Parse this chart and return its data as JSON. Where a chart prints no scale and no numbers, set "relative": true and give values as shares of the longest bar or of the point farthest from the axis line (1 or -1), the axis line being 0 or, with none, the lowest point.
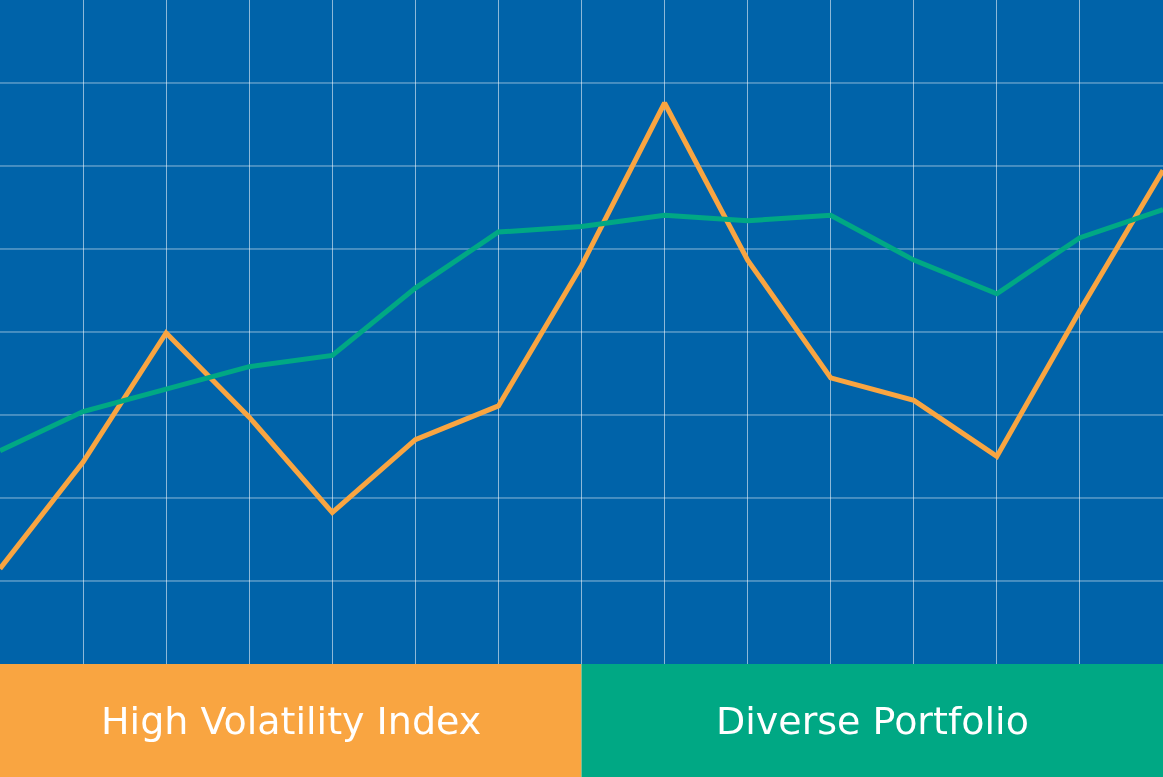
{
  "chart_data": {
    "type": "line",
    "relative": true,
    "grid": true,
    "legend": "bottom",
    "tick_labels": false,
    "categories": [
      null,
      null,
      null,
      null,
      null,
      null,
      null,
      null,
      null,
      null,
      null,
      null,
      null,
      null,
      null
    ],
    "series": [
      {
        "name": "High Volatility Index",
        "color": "#f9a541",
        "values": [
          0.17,
          0.36,
          0.59,
          0.44,
          0.27,
          0.4,
          0.46,
          0.71,
          1,
          0.72,
          0.51,
          0.47,
          0.37,
          0.63,
          0.88
        ]
      },
      {
        "name": "Diverse Portfolio",
        "color": "#00a884",
        "values": [
          0.38,
          0.45,
          0.49,
          0.53,
          0.55,
          0.67,
          0.77,
          0.78,
          0.8,
          0.79,
          0.8,
          0.72,
          0.66,
          0.76,
          0.81
        ]
      }
    ]
  }
}
